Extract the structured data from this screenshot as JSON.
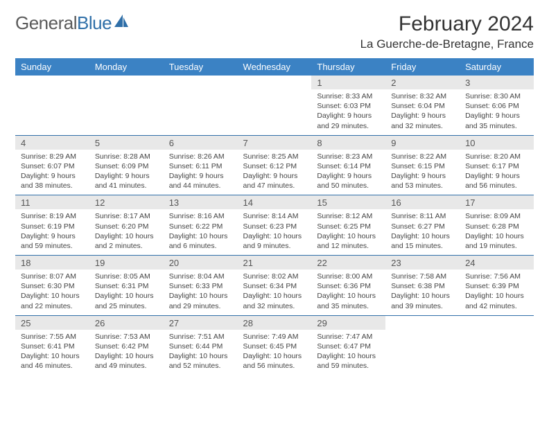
{
  "logo": {
    "text1": "General",
    "text2": "Blue"
  },
  "header": {
    "month": "February 2024",
    "location": "La Guerche-de-Bretagne, France"
  },
  "colors": {
    "headerBg": "#3b82c4",
    "headerText": "#ffffff",
    "rowAlt": "#e8e8e8",
    "border": "#2f6fa8"
  },
  "dayNames": [
    "Sunday",
    "Monday",
    "Tuesday",
    "Wednesday",
    "Thursday",
    "Friday",
    "Saturday"
  ],
  "weeks": [
    [
      null,
      null,
      null,
      null,
      {
        "n": "1",
        "sr": "Sunrise: 8:33 AM",
        "ss": "Sunset: 6:03 PM",
        "dl": "Daylight: 9 hours and 29 minutes."
      },
      {
        "n": "2",
        "sr": "Sunrise: 8:32 AM",
        "ss": "Sunset: 6:04 PM",
        "dl": "Daylight: 9 hours and 32 minutes."
      },
      {
        "n": "3",
        "sr": "Sunrise: 8:30 AM",
        "ss": "Sunset: 6:06 PM",
        "dl": "Daylight: 9 hours and 35 minutes."
      }
    ],
    [
      {
        "n": "4",
        "sr": "Sunrise: 8:29 AM",
        "ss": "Sunset: 6:07 PM",
        "dl": "Daylight: 9 hours and 38 minutes."
      },
      {
        "n": "5",
        "sr": "Sunrise: 8:28 AM",
        "ss": "Sunset: 6:09 PM",
        "dl": "Daylight: 9 hours and 41 minutes."
      },
      {
        "n": "6",
        "sr": "Sunrise: 8:26 AM",
        "ss": "Sunset: 6:11 PM",
        "dl": "Daylight: 9 hours and 44 minutes."
      },
      {
        "n": "7",
        "sr": "Sunrise: 8:25 AM",
        "ss": "Sunset: 6:12 PM",
        "dl": "Daylight: 9 hours and 47 minutes."
      },
      {
        "n": "8",
        "sr": "Sunrise: 8:23 AM",
        "ss": "Sunset: 6:14 PM",
        "dl": "Daylight: 9 hours and 50 minutes."
      },
      {
        "n": "9",
        "sr": "Sunrise: 8:22 AM",
        "ss": "Sunset: 6:15 PM",
        "dl": "Daylight: 9 hours and 53 minutes."
      },
      {
        "n": "10",
        "sr": "Sunrise: 8:20 AM",
        "ss": "Sunset: 6:17 PM",
        "dl": "Daylight: 9 hours and 56 minutes."
      }
    ],
    [
      {
        "n": "11",
        "sr": "Sunrise: 8:19 AM",
        "ss": "Sunset: 6:19 PM",
        "dl": "Daylight: 9 hours and 59 minutes."
      },
      {
        "n": "12",
        "sr": "Sunrise: 8:17 AM",
        "ss": "Sunset: 6:20 PM",
        "dl": "Daylight: 10 hours and 2 minutes."
      },
      {
        "n": "13",
        "sr": "Sunrise: 8:16 AM",
        "ss": "Sunset: 6:22 PM",
        "dl": "Daylight: 10 hours and 6 minutes."
      },
      {
        "n": "14",
        "sr": "Sunrise: 8:14 AM",
        "ss": "Sunset: 6:23 PM",
        "dl": "Daylight: 10 hours and 9 minutes."
      },
      {
        "n": "15",
        "sr": "Sunrise: 8:12 AM",
        "ss": "Sunset: 6:25 PM",
        "dl": "Daylight: 10 hours and 12 minutes."
      },
      {
        "n": "16",
        "sr": "Sunrise: 8:11 AM",
        "ss": "Sunset: 6:27 PM",
        "dl": "Daylight: 10 hours and 15 minutes."
      },
      {
        "n": "17",
        "sr": "Sunrise: 8:09 AM",
        "ss": "Sunset: 6:28 PM",
        "dl": "Daylight: 10 hours and 19 minutes."
      }
    ],
    [
      {
        "n": "18",
        "sr": "Sunrise: 8:07 AM",
        "ss": "Sunset: 6:30 PM",
        "dl": "Daylight: 10 hours and 22 minutes."
      },
      {
        "n": "19",
        "sr": "Sunrise: 8:05 AM",
        "ss": "Sunset: 6:31 PM",
        "dl": "Daylight: 10 hours and 25 minutes."
      },
      {
        "n": "20",
        "sr": "Sunrise: 8:04 AM",
        "ss": "Sunset: 6:33 PM",
        "dl": "Daylight: 10 hours and 29 minutes."
      },
      {
        "n": "21",
        "sr": "Sunrise: 8:02 AM",
        "ss": "Sunset: 6:34 PM",
        "dl": "Daylight: 10 hours and 32 minutes."
      },
      {
        "n": "22",
        "sr": "Sunrise: 8:00 AM",
        "ss": "Sunset: 6:36 PM",
        "dl": "Daylight: 10 hours and 35 minutes."
      },
      {
        "n": "23",
        "sr": "Sunrise: 7:58 AM",
        "ss": "Sunset: 6:38 PM",
        "dl": "Daylight: 10 hours and 39 minutes."
      },
      {
        "n": "24",
        "sr": "Sunrise: 7:56 AM",
        "ss": "Sunset: 6:39 PM",
        "dl": "Daylight: 10 hours and 42 minutes."
      }
    ],
    [
      {
        "n": "25",
        "sr": "Sunrise: 7:55 AM",
        "ss": "Sunset: 6:41 PM",
        "dl": "Daylight: 10 hours and 46 minutes."
      },
      {
        "n": "26",
        "sr": "Sunrise: 7:53 AM",
        "ss": "Sunset: 6:42 PM",
        "dl": "Daylight: 10 hours and 49 minutes."
      },
      {
        "n": "27",
        "sr": "Sunrise: 7:51 AM",
        "ss": "Sunset: 6:44 PM",
        "dl": "Daylight: 10 hours and 52 minutes."
      },
      {
        "n": "28",
        "sr": "Sunrise: 7:49 AM",
        "ss": "Sunset: 6:45 PM",
        "dl": "Daylight: 10 hours and 56 minutes."
      },
      {
        "n": "29",
        "sr": "Sunrise: 7:47 AM",
        "ss": "Sunset: 6:47 PM",
        "dl": "Daylight: 10 hours and 59 minutes."
      },
      null,
      null
    ]
  ]
}
